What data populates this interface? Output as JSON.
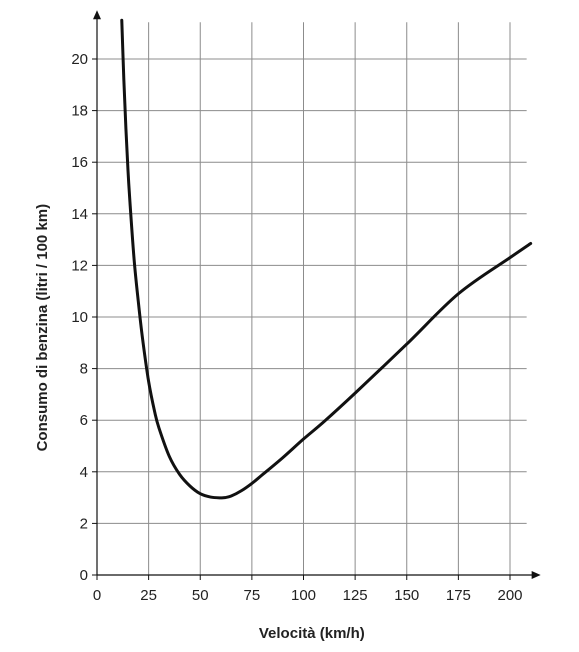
{
  "chart_data": {
    "type": "line",
    "title": "",
    "xlabel": "Velocità (km/h)",
    "ylabel": "Consumo di benzina (litri / 100 km)",
    "xlim": [
      0,
      210
    ],
    "ylim": [
      0,
      21.5
    ],
    "x_ticks": [
      0,
      25,
      50,
      75,
      100,
      125,
      150,
      175,
      200
    ],
    "y_ticks": [
      0,
      2,
      4,
      6,
      8,
      10,
      12,
      14,
      16,
      18,
      20
    ],
    "grid": true,
    "legend": "none",
    "colors": {
      "line": "#111111",
      "grid": "#8c8c8c",
      "axis": "#111111"
    },
    "series": [
      {
        "x": [
          12,
          13,
          14,
          15,
          16,
          18,
          20,
          22,
          25,
          28,
          30,
          35,
          40,
          45,
          50,
          55,
          60,
          62,
          65,
          70,
          75,
          80,
          90,
          100,
          110,
          125,
          150,
          175,
          200,
          210
        ],
        "values": [
          21.5,
          19.2,
          17.3,
          15.7,
          14.4,
          12.2,
          10.6,
          9.2,
          7.5,
          6.3,
          5.7,
          4.6,
          3.9,
          3.45,
          3.15,
          3.02,
          2.99,
          3.0,
          3.06,
          3.27,
          3.55,
          3.88,
          4.55,
          5.27,
          5.95,
          7.05,
          8.95,
          10.9,
          12.3,
          12.85
        ]
      }
    ]
  }
}
